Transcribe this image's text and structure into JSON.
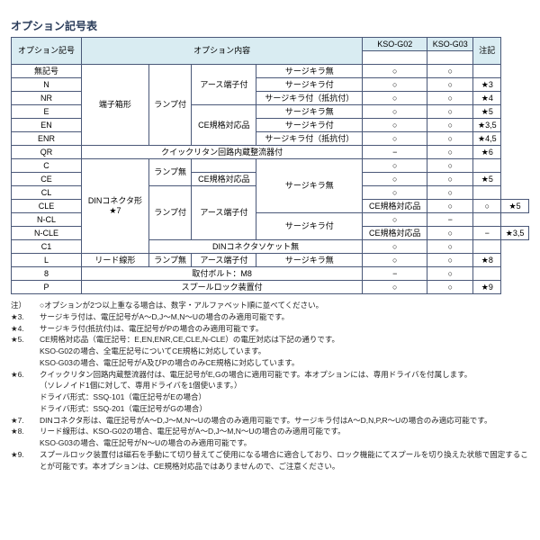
{
  "title": "オプション記号表",
  "head": {
    "c1": "オプション記号",
    "c2": "オプション内容",
    "c3": "KSO-G02",
    "c4": "KSO-G03",
    "c5": "注記"
  },
  "r": {
    "blank": "無記号",
    "n": "N",
    "nr": "NR",
    "e": "E",
    "en": "EN",
    "enr": "ENR",
    "qr": "QR",
    "c": "C",
    "ce": "CE",
    "cl": "CL",
    "cle": "CLE",
    "ncl": "N-CL",
    "ncle": "N-CLE",
    "c1": "C1",
    "l": "L",
    "8": "8",
    "p": "P",
    "terminal": "端子箱形",
    "lamp_on": "ランプ付",
    "earth": "アース端子付",
    "surge_no": "サージキラ無",
    "surge_yes": "サージキラ付",
    "surge_res": "サージキラ付（抵抗付）",
    "ce_std": "CE規格対応品",
    "quick": "クイックリタン回路内蔵整流器付",
    "lamp_off": "ランプ無",
    "din": "DINコネクタ形\n★7",
    "din_sock_no": "DINコネクタソケット無",
    "lead": "リード線形",
    "bolt": "取付ボルト：M8",
    "spool": "スプールロック装置付"
  },
  "s": {
    "o": "○",
    "d": "−",
    "s3": "★3",
    "s4": "★4",
    "s5": "★5",
    "s35": "★3,5",
    "s45": "★4,5",
    "s6": "★6",
    "s8": "★8",
    "s9": "★9"
  },
  "notes": [
    {
      "tag": "注）",
      "txt": "○オプションが2つ以上重なる場合は、数字・アルファベット順に並べてください。"
    },
    {
      "tag": "★3.",
      "txt": "サージキラ付は、電圧記号がA～D,J～M,N～Uの場合のみ適用可能です。"
    },
    {
      "tag": "★4.",
      "txt": "サージキラ付(抵抗付)は、電圧記号がPの場合のみ適用可能です。"
    },
    {
      "tag": "★5.",
      "txt": "CE規格対応品（電圧記号：E,EN,ENR,CE,CLE,N-CLE）の電圧対応は下記の通りです。"
    },
    {
      "tag": "",
      "txt": "KSO-G02の場合、全電圧記号についてCE規格に対応しています。"
    },
    {
      "tag": "",
      "txt": "KSO-G03の場合、電圧記号がA及びPの場合のみCE規格に対応しています。"
    },
    {
      "tag": "★6.",
      "txt": "クイックリタン回路内蔵整流器付は、電圧記号がE,Gの場合に適用可能です。本オプションには、専用ドライバを付属します。"
    },
    {
      "tag": "",
      "txt": "（ソレノイド1個に対して、専用ドライバを1個使います。）"
    },
    {
      "tag": "",
      "txt": "ドライバ形式：SSQ-101（電圧記号がEの場合）"
    },
    {
      "tag": "",
      "txt": "ドライバ形式：SSQ-201（電圧記号がGの場合）"
    },
    {
      "tag": "★7.",
      "txt": "DINコネクタ形は、電圧記号がA～D,J～M,N～Uの場合のみ適用可能です。サージキラ付はA～D,N,P,R～Uの場合のみ適応可能です。"
    },
    {
      "tag": "★8.",
      "txt": "リード線形は、KSO-G02の場合、電圧記号がA～D,J～M,N～Uの場合のみ適用可能です。"
    },
    {
      "tag": "",
      "txt": "KSO-G03の場合、電圧記号がN～Uの場合のみ適用可能です。"
    },
    {
      "tag": "★9.",
      "txt": "スプールロック装置付は磁石を手動にて切り替えてご使用になる場合に適合しており、ロック機能にてスプールを切り換えた状態で固定することが可能です。本オプションは、CE規格対応品ではありませんので、ご注意ください。"
    }
  ]
}
